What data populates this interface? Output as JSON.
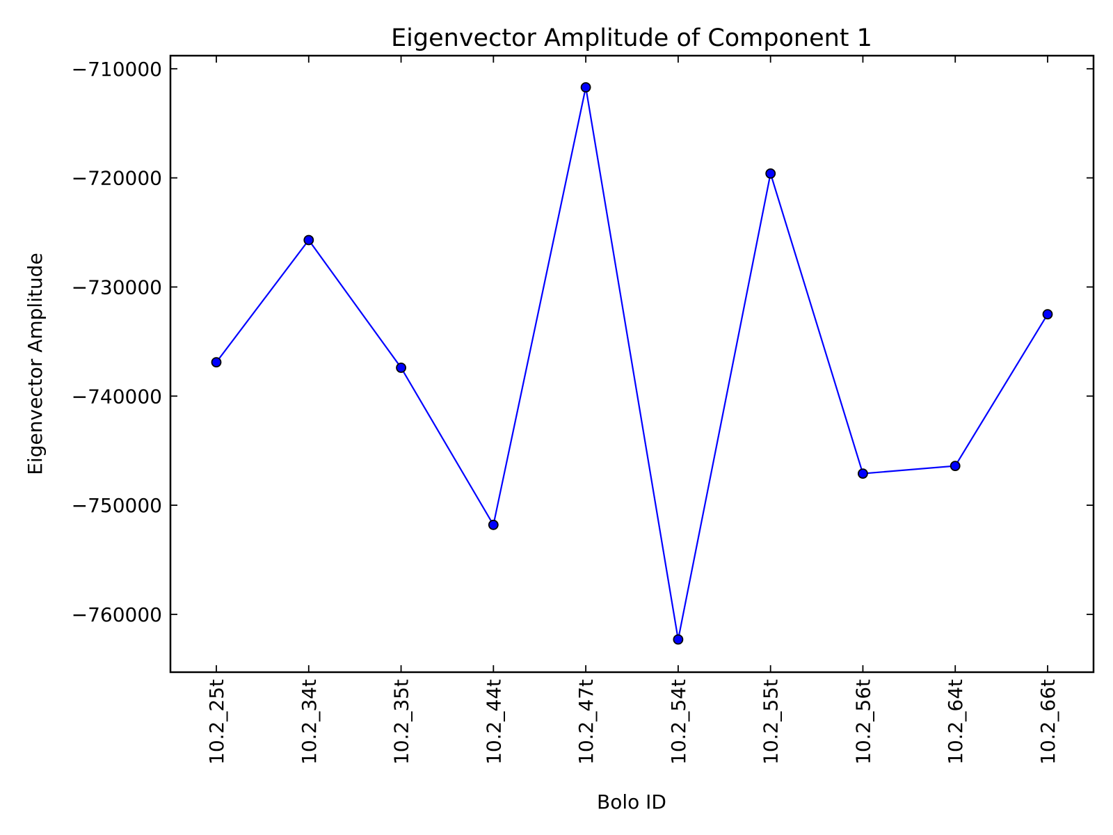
{
  "chart_data": {
    "type": "line",
    "title": "Eigenvector Amplitude of Component 1",
    "xlabel": "Bolo ID",
    "ylabel": "Eigenvector Amplitude",
    "categories": [
      "10.2_25t",
      "10.2_34t",
      "10.2_35t",
      "10.2_44t",
      "10.2_47t",
      "10.2_54t",
      "10.2_55t",
      "10.2_56t",
      "10.2_64t",
      "10.2_66t"
    ],
    "series": [
      {
        "values": [
          -736900,
          -725700,
          -737400,
          -751800,
          -711700,
          -762300,
          -719600,
          -747100,
          -746400,
          -732500
        ]
      }
    ],
    "ylim": [
      -765300,
      -708800
    ],
    "y_ticks": [
      -710000,
      -720000,
      -730000,
      -740000,
      -750000,
      -760000
    ],
    "y_tick_labels": [
      "−710000",
      "−720000",
      "−730000",
      "−740000",
      "−750000",
      "−760000"
    ],
    "grid": false,
    "line_color": "#0000ff",
    "marker_color": "#0000ff",
    "marker_edge_color": "#000000"
  }
}
